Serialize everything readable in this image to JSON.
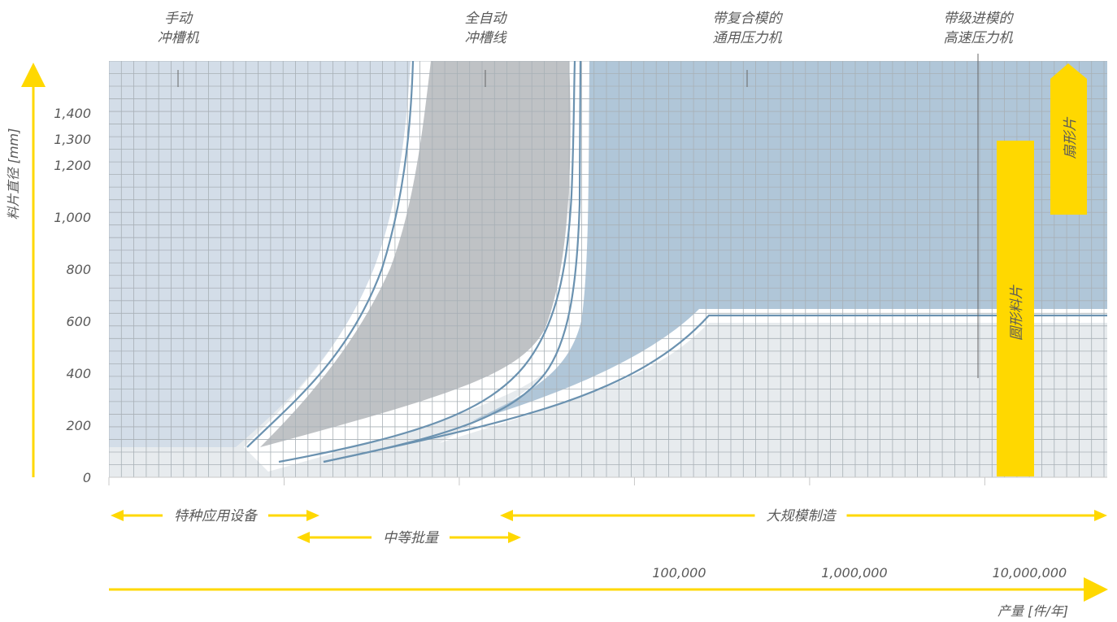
{
  "chart_data": {
    "type": "area",
    "ylabel": "料片直径 [mm]",
    "xlabel": "产量 [件/年]",
    "y_ticks": [
      {
        "label": "0",
        "v": 0
      },
      {
        "label": "200",
        "v": 200
      },
      {
        "label": "400",
        "v": 400
      },
      {
        "label": "600",
        "v": 600
      },
      {
        "label": "800",
        "v": 800
      },
      {
        "label": "1,000",
        "v": 1000
      },
      {
        "label": "1,200",
        "v": 1200
      },
      {
        "label": "1,300",
        "v": 1300
      },
      {
        "label": "1,400",
        "v": 1400
      }
    ],
    "y_max": 1600,
    "x_ticks": [
      {
        "label": "100,000",
        "v": 100000
      },
      {
        "label": "1,000,000",
        "v": 1000000
      },
      {
        "label": "10,000,000",
        "v": 10000000
      }
    ],
    "x_scale": "log",
    "x_range": [
      100,
      50000000
    ],
    "grid": true,
    "region_labels": [
      {
        "lines": [
          "手动",
          "冲槽机"
        ]
      },
      {
        "lines": [
          "全自动",
          "冲槽线"
        ]
      },
      {
        "lines": [
          "带复合模的",
          "通用压力机"
        ]
      },
      {
        "lines": [
          "带级进模的",
          "高速压力机"
        ]
      }
    ],
    "bar_labels": [
      "圆形料片",
      "扇形片"
    ],
    "ranges": [
      {
        "label": "特种应用设备"
      },
      {
        "label": "中等批量"
      },
      {
        "label": "大规模制造"
      }
    ],
    "colors": {
      "region_manual": "#d3dde8",
      "region_auto": "#bfc2c5",
      "region_universal": "#b0c6d8",
      "region_highspeed": "#e7ebee",
      "grid": "#a8b0b6",
      "boundary": "#6b92b0",
      "accent": "#ffd800"
    }
  }
}
